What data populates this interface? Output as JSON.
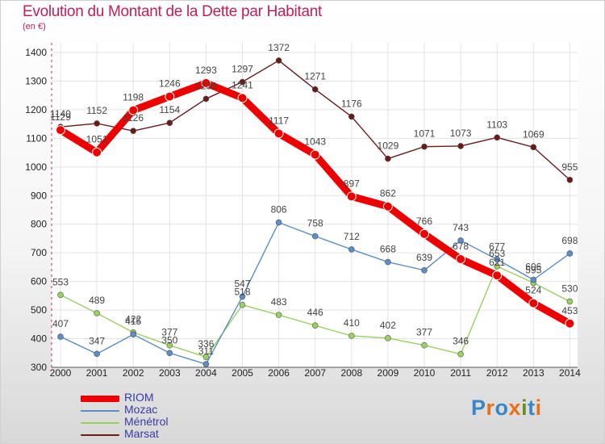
{
  "title": "Evolution du Montant de la Dette par Habitant",
  "unit_label": "(en €)",
  "logo_text": "Proxiti",
  "logo_colors": [
    "#3b86c8",
    "#e8701a",
    "#3b86c8",
    "#e8701a",
    "#6b8e23",
    "#3b86c8",
    "#e8701a"
  ],
  "chart_data": {
    "type": "line",
    "x": [
      "2000",
      "2001",
      "2002",
      "2003",
      "2004",
      "2005",
      "2006",
      "2007",
      "2008",
      "2009",
      "2010",
      "2011",
      "2012",
      "2013",
      "2014"
    ],
    "ylim": [
      300,
      1400
    ],
    "yticks": [
      300,
      400,
      500,
      600,
      700,
      800,
      900,
      1000,
      1100,
      1200,
      1300,
      1400
    ],
    "grid": true,
    "legend_position": "bottom-left",
    "series": [
      {
        "name": "RIOM",
        "color": "#ee0000",
        "values": [
          1129,
          1051,
          1198,
          1246,
          1293,
          1241,
          1117,
          1043,
          897,
          862,
          766,
          678,
          621,
          524,
          453
        ]
      },
      {
        "name": "Mozac",
        "color": "#5b8ec6",
        "values": [
          407,
          347,
          415,
          350,
          311,
          547,
          806,
          758,
          712,
          668,
          639,
          743,
          677,
          606,
          698
        ]
      },
      {
        "name": "Ménétrol",
        "color": "#99d060",
        "values": [
          553,
          489,
          422,
          377,
          336,
          518,
          483,
          446,
          410,
          402,
          377,
          346,
          653,
          595,
          530
        ]
      },
      {
        "name": "Marsat",
        "color": "#6b1a1a",
        "values": [
          1140,
          1152,
          1126,
          1154,
          1238,
          1297,
          1372,
          1271,
          1176,
          1029,
          1071,
          1073,
          1103,
          1069,
          955
        ]
      }
    ]
  }
}
